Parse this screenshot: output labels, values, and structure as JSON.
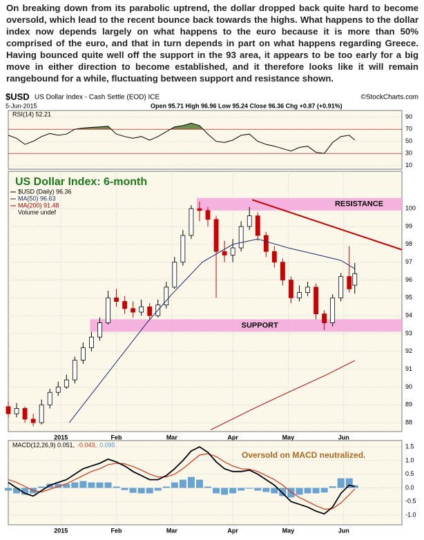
{
  "text": "On breaking down from its parabolic uptrend, the dollar dropped back quite hard to become oversold, which lead to the recent bounce back towards the highs. What happens to the dollar index now depends largely on what happens to the euro because it is more than 50% comprised of the euro, and that in turn depends in part on what happens regarding Greece. Having bounced quite well off the support in the 93 area, it appears to be too early for a big move in either direction to become established, and it therefore looks like it will remain rangebound for a while, fluctuating between support and resistance shown.",
  "header": {
    "symbol": "$USD",
    "name": "US Dollar Index - Cash Settle (EOD) ICE",
    "source": "©StockCharts.com",
    "date": "5-Jun-2015",
    "quote": "Open 95.71 High 96.96 Low 95.24 Close 96.36 Chg +0.87 (+0.91%)"
  },
  "chart_data": [
    {
      "type": "line",
      "x": [
        0,
        3,
        6,
        9,
        12,
        15,
        18,
        21,
        24,
        27,
        30,
        33,
        36,
        39,
        42,
        45,
        48,
        51,
        54,
        57,
        60,
        63,
        66,
        69,
        72,
        75,
        78,
        81,
        84,
        87,
        90,
        93,
        96,
        99,
        102,
        105,
        108,
        111,
        114,
        117,
        120,
        123,
        125
      ],
      "series": [
        {
          "name": "RSI(14) 52.21",
          "color": "#000000",
          "values": [
            60,
            55,
            45,
            50,
            58,
            63,
            60,
            62,
            70,
            72,
            73,
            74,
            75,
            62,
            58,
            55,
            58,
            52,
            58,
            66,
            74,
            76,
            80,
            76,
            62,
            50,
            48,
            52,
            60,
            62,
            50,
            45,
            42,
            38,
            34,
            40,
            42,
            32,
            30,
            48,
            58,
            60,
            52.21
          ]
        }
      ],
      "xlim": [
        0,
        142
      ],
      "ylim": [
        4,
        101
      ],
      "yticks": [
        90,
        70,
        50,
        30,
        10
      ],
      "overbought": 70,
      "oversold": 30,
      "fill_color": "#6f8f4f"
    },
    {
      "type": "candlestick",
      "title": "US Dollar Index: 6-month",
      "candle_name": "$USD (Daily) 96.36",
      "up_color": "#000000",
      "down_color": "#cc0000",
      "x": [
        0,
        3,
        6,
        9,
        12,
        15,
        18,
        21,
        24,
        27,
        30,
        33,
        36,
        39,
        42,
        45,
        48,
        51,
        54,
        57,
        60,
        63,
        66,
        69,
        72,
        75,
        78,
        81,
        84,
        87,
        90,
        93,
        96,
        99,
        102,
        105,
        108,
        111,
        114,
        117,
        120,
        123,
        125
      ],
      "ohlc": [
        [
          88.9,
          89.2,
          88.3,
          88.5
        ],
        [
          88.5,
          89.1,
          88.3,
          88.8
        ],
        [
          88.8,
          88.9,
          88.0,
          88.2
        ],
        [
          88.2,
          88.5,
          87.8,
          88.0
        ],
        [
          88.0,
          89.3,
          87.9,
          89.0
        ],
        [
          89.0,
          89.9,
          88.8,
          89.7
        ],
        [
          89.7,
          90.3,
          89.5,
          90.0
        ],
        [
          90.0,
          90.7,
          89.9,
          90.4
        ],
        [
          90.4,
          91.7,
          90.2,
          91.5
        ],
        [
          91.5,
          92.5,
          91.3,
          92.2
        ],
        [
          92.2,
          93.1,
          92.0,
          92.8
        ],
        [
          92.8,
          93.9,
          92.6,
          93.6
        ],
        [
          93.6,
          95.4,
          93.5,
          95.0
        ],
        [
          95.0,
          95.5,
          94.5,
          94.8
        ],
        [
          94.8,
          95.1,
          94.1,
          94.4
        ],
        [
          94.4,
          94.8,
          93.9,
          94.2
        ],
        [
          94.2,
          94.9,
          94.0,
          94.5
        ],
        [
          94.5,
          94.7,
          93.8,
          94.0
        ],
        [
          94.0,
          94.9,
          93.9,
          94.6
        ],
        [
          94.6,
          95.9,
          94.4,
          95.6
        ],
        [
          95.6,
          97.3,
          95.5,
          97.0
        ],
        [
          97.0,
          98.8,
          96.8,
          98.5
        ],
        [
          98.5,
          100.2,
          98.3,
          100.0
        ],
        [
          100.0,
          100.4,
          99.3,
          99.9
        ],
        [
          99.9,
          100.1,
          99.0,
          99.4
        ],
        [
          99.4,
          99.6,
          95.0,
          97.6
        ],
        [
          97.6,
          98.2,
          97.0,
          97.4
        ],
        [
          97.4,
          98.3,
          97.0,
          97.8
        ],
        [
          97.8,
          99.3,
          97.6,
          99.0
        ],
        [
          99.0,
          100.1,
          98.8,
          99.6
        ],
        [
          99.6,
          99.8,
          98.2,
          98.5
        ],
        [
          98.5,
          98.7,
          97.3,
          97.6
        ],
        [
          97.6,
          97.9,
          96.7,
          97.0
        ],
        [
          97.0,
          97.2,
          95.7,
          96.0
        ],
        [
          96.0,
          96.2,
          94.7,
          95.0
        ],
        [
          95.0,
          95.7,
          94.8,
          95.3
        ],
        [
          95.3,
          95.9,
          95.1,
          95.6
        ],
        [
          95.6,
          95.8,
          93.8,
          94.1
        ],
        [
          94.1,
          94.3,
          93.2,
          93.6
        ],
        [
          93.6,
          95.2,
          93.4,
          95.0
        ],
        [
          95.0,
          96.4,
          94.8,
          96.2
        ],
        [
          96.2,
          97.9,
          95.3,
          95.5
        ],
        [
          95.71,
          96.96,
          95.24,
          96.36
        ]
      ],
      "lines": [
        {
          "name": "MA(50) 96.63",
          "color": "#1a2a6c",
          "x": [
            22,
            30,
            40,
            50,
            59,
            70,
            81,
            90,
            101,
            112,
            120,
            125
          ],
          "values": [
            88.0,
            89.6,
            91.6,
            93.6,
            95.2,
            97.0,
            98.0,
            98.3,
            97.8,
            97.4,
            97.1,
            96.63
          ]
        },
        {
          "name": "MA(200) 91.48",
          "color": "#c00000",
          "x": [
            73,
            90,
            101,
            115,
            125
          ],
          "values": [
            87.6,
            88.9,
            89.7,
            90.7,
            91.48
          ]
        }
      ],
      "volume_label": "Volume undef",
      "bands": [
        {
          "label": "RESISTANCE",
          "range": [
            99.9,
            100.6
          ],
          "x_start": 68,
          "color": "#f4a6dc"
        },
        {
          "label": "SUPPORT",
          "range": [
            93.1,
            93.8
          ],
          "x_start": 29.5,
          "color": "#f4a6dc"
        }
      ],
      "trendline": {
        "points": [
          [
            88,
            100.5
          ],
          [
            142,
            97.7
          ]
        ],
        "color": "#cc0000"
      },
      "xlim": [
        0,
        142
      ],
      "ylim": [
        87.5,
        102.1
      ],
      "yticks": [
        88,
        89,
        90,
        91,
        92,
        93,
        94,
        95,
        96,
        97,
        98,
        99,
        100
      ],
      "xticks": [
        {
          "value": 19,
          "label": "2015"
        },
        {
          "value": 39,
          "label": "Feb"
        },
        {
          "value": 59,
          "label": "Mar"
        },
        {
          "value": 81,
          "label": "Apr"
        },
        {
          "value": 101,
          "label": "May"
        },
        {
          "value": 121,
          "label": "Jun"
        }
      ]
    },
    {
      "type": "macd",
      "x": [
        0,
        3,
        6,
        9,
        12,
        15,
        18,
        21,
        24,
        27,
        30,
        33,
        36,
        39,
        42,
        45,
        48,
        51,
        54,
        57,
        60,
        63,
        66,
        69,
        72,
        75,
        78,
        81,
        84,
        87,
        90,
        93,
        96,
        99,
        102,
        105,
        108,
        111,
        114,
        117,
        120,
        123,
        125
      ],
      "series": [
        {
          "name": "MACD(12,26,9) 0.051,",
          "color": "#000000",
          "values": [
            0.2,
            0.0,
            -0.2,
            -0.3,
            -0.1,
            0.1,
            0.2,
            0.3,
            0.5,
            0.7,
            0.8,
            0.9,
            1.05,
            0.95,
            0.8,
            0.6,
            0.45,
            0.3,
            0.3,
            0.45,
            0.7,
            1.0,
            1.35,
            1.5,
            1.3,
            0.95,
            0.7,
            0.6,
            0.6,
            0.65,
            0.5,
            0.3,
            0.1,
            -0.2,
            -0.5,
            -0.6,
            -0.7,
            -0.85,
            -0.95,
            -0.7,
            -0.2,
            0.1,
            0.051
          ]
        },
        {
          "name": "-0.043,",
          "color": "#e03010",
          "values": [
            0.3,
            0.2,
            0.05,
            -0.1,
            -0.15,
            -0.05,
            0.05,
            0.15,
            0.3,
            0.45,
            0.6,
            0.7,
            0.85,
            0.9,
            0.88,
            0.78,
            0.65,
            0.5,
            0.4,
            0.4,
            0.5,
            0.7,
            0.95,
            1.2,
            1.25,
            1.15,
            0.95,
            0.8,
            0.7,
            0.68,
            0.6,
            0.45,
            0.3,
            0.1,
            -0.15,
            -0.35,
            -0.5,
            -0.65,
            -0.78,
            -0.76,
            -0.55,
            -0.25,
            -0.043
          ]
        }
      ],
      "histogram": {
        "name": "0.095",
        "color": "#4f94cd",
        "values": [
          -0.1,
          -0.2,
          -0.25,
          -0.2,
          0.05,
          0.15,
          0.15,
          0.15,
          0.2,
          0.25,
          0.2,
          0.2,
          0.2,
          0.05,
          -0.08,
          -0.18,
          -0.2,
          -0.2,
          -0.1,
          0.05,
          0.2,
          0.3,
          0.4,
          0.3,
          0.05,
          -0.2,
          -0.25,
          -0.2,
          -0.1,
          -0.03,
          -0.1,
          -0.15,
          -0.2,
          -0.3,
          -0.35,
          -0.25,
          -0.2,
          -0.2,
          -0.17,
          0.06,
          0.35,
          0.35,
          0.095
        ]
      },
      "annotation": "Oversold on MACD neutralized.",
      "xlim": [
        0,
        142
      ],
      "ylim": [
        -1.35,
        1.73
      ],
      "yticks": [
        1.5,
        {
          "value": 1,
          "label": "1.0"
        },
        0.5,
        {
          "value": 0,
          "label": "0.0"
        },
        -0.5,
        {
          "value": -1,
          "label": "-1.0"
        }
      ],
      "xticks": [
        {
          "value": 19,
          "label": "2015"
        },
        {
          "value": 39,
          "label": "Feb"
        },
        {
          "value": 59,
          "label": "Mar"
        },
        {
          "value": 81,
          "label": "Apr"
        },
        {
          "value": 101,
          "label": "May"
        },
        {
          "value": 121,
          "label": "Jun"
        }
      ]
    }
  ]
}
